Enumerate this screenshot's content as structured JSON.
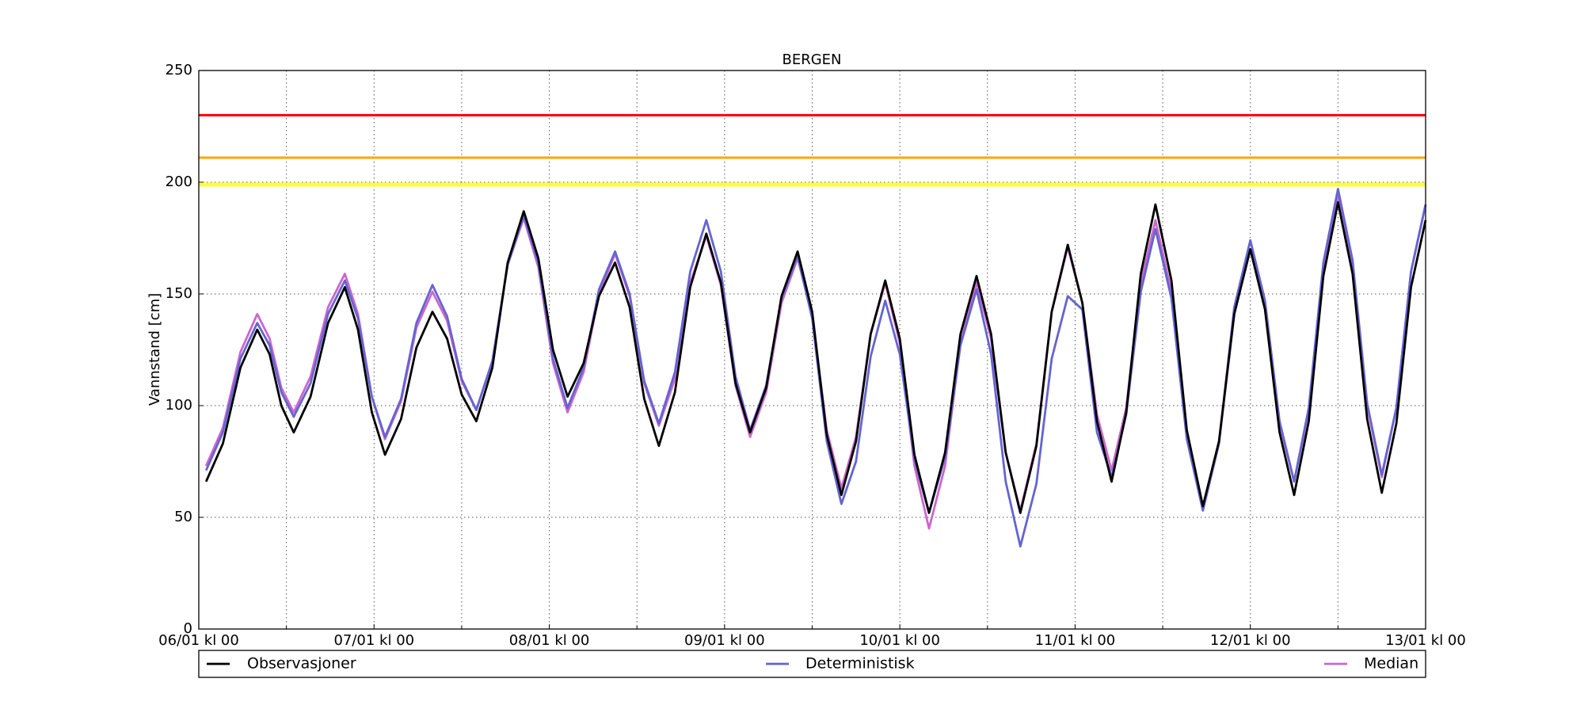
{
  "chart_data": {
    "type": "line",
    "title": "BERGEN",
    "y_label": "Vannstand [cm]",
    "x": [
      1,
      3.3,
      5.7,
      8,
      9.7,
      11.3,
      13,
      15.3,
      17.7,
      20,
      21.8,
      23.7,
      25.5,
      27.7,
      29.8,
      32,
      34,
      36,
      38,
      40.2,
      42.3,
      44.5,
      46.5,
      48.5,
      50.5,
      52.7,
      54.8,
      57,
      59,
      61,
      63,
      65.2,
      67.3,
      69.5,
      71.5,
      73.5,
      75.5,
      77.7,
      79.8,
      82,
      84,
      86,
      88,
      90,
      92,
      94,
      96,
      98,
      100,
      102.2,
      104.3,
      106.5,
      108.5,
      110.5,
      112.5,
      114.7,
      116.8,
      119,
      121,
      123,
      125,
      127,
      129,
      131,
      133.2,
      135.3,
      137.5,
      139.7,
      141.8,
      144,
      146,
      148,
      150,
      152,
      154,
      156,
      158,
      160,
      162,
      164,
      166,
      168
    ],
    "series": [
      {
        "name": "Observasjoner",
        "color": "#000000",
        "values": [
          66,
          83,
          117,
          134,
          123,
          100,
          88,
          104,
          137,
          153,
          134,
          97,
          78,
          94,
          126,
          142,
          130,
          105,
          93,
          117,
          164,
          187,
          166,
          125,
          104,
          119,
          149,
          164,
          144,
          103,
          82,
          106,
          153,
          177,
          155,
          110,
          88,
          108,
          149,
          169,
          142,
          87,
          60,
          84,
          132,
          156,
          130,
          78,
          52,
          79,
          132,
          158,
          132,
          79,
          52,
          82,
          142,
          172,
          146,
          93,
          66,
          97,
          159,
          190,
          156,
          89,
          55,
          84,
          141,
          170,
          143,
          88,
          60,
          93,
          158,
          191,
          159,
          94,
          61,
          92,
          153,
          183
        ]
      },
      {
        "name": "Deterministisk",
        "color": "#6464d2",
        "values": [
          71,
          88,
          121,
          137,
          127,
          106,
          95,
          110,
          141,
          156,
          139,
          104,
          86,
          103,
          137,
          154,
          140,
          112,
          98,
          120,
          163,
          185,
          164,
          121,
          99,
          117,
          152,
          169,
          150,
          111,
          92,
          115,
          160,
          183,
          160,
          113,
          89,
          109,
          148,
          167,
          139,
          84,
          56,
          75,
          122,
          147,
          123,
          76,
          52,
          77,
          127,
          152,
          123,
          66,
          37,
          65,
          121,
          149,
          143,
          88,
          68,
          96,
          151,
          179,
          148,
          85,
          53,
          83,
          144,
          174,
          147,
          93,
          66,
          99,
          164,
          197,
          165,
          101,
          69,
          99,
          160,
          190
        ]
      },
      {
        "name": "Median",
        "color": "#cc66cc",
        "values": [
          73,
          90,
          124,
          141,
          130,
          108,
          97,
          113,
          144,
          159,
          141,
          104,
          85,
          102,
          135,
          151,
          138,
          111,
          98,
          120,
          163,
          184,
          162,
          119,
          97,
          115,
          150,
          168,
          149,
          110,
          91,
          112,
          155,
          176,
          154,
          109,
          86,
          106,
          146,
          166,
          140,
          89,
          63,
          86,
          132,
          155,
          128,
          73,
          45,
          73,
          128,
          155,
          130,
          79,
          53,
          83,
          142,
          171,
          146,
          96,
          71,
          99,
          155,
          183,
          151,
          86,
          54,
          83,
          141,
          170,
          144,
          92,
          66,
          98,
          162,
          194,
          163,
          100,
          68,
          99,
          160,
          190
        ]
      }
    ],
    "thresholds": [
      {
        "value": 230,
        "color": "#ff0000"
      },
      {
        "value": 211,
        "color": "#ffa500"
      },
      {
        "value": 199,
        "color": "#ffff33"
      }
    ],
    "xlim": [
      0,
      168
    ],
    "xticks": [
      {
        "value": 0,
        "label": "06/01 kl 00"
      },
      {
        "value": 24,
        "label": "07/01 kl 00"
      },
      {
        "value": 48,
        "label": "08/01 kl 00"
      },
      {
        "value": 72,
        "label": "09/01 kl 00"
      },
      {
        "value": 96,
        "label": "10/01 kl 00"
      },
      {
        "value": 120,
        "label": "11/01 kl 00"
      },
      {
        "value": 144,
        "label": "12/01 kl 00"
      },
      {
        "value": 168,
        "label": "13/01 kl 00"
      }
    ],
    "x_minor_ticks": [
      12,
      36,
      60,
      84,
      108,
      132,
      156
    ],
    "ylim": [
      0,
      250
    ],
    "yticks": [
      0,
      50,
      100,
      150,
      200,
      250
    ],
    "grid": true,
    "legend": "bottom"
  }
}
